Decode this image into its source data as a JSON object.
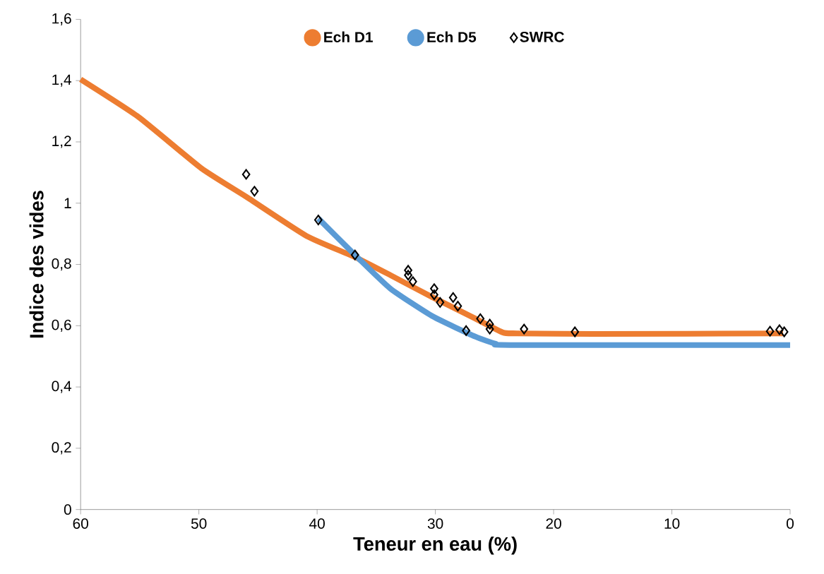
{
  "chart_data": {
    "type": "line",
    "xlabel": "Teneur en eau (%)",
    "ylabel": "Indice des vides",
    "xlim": [
      60,
      0
    ],
    "xticks": [
      60,
      50,
      40,
      30,
      20,
      10,
      0
    ],
    "ylim": [
      0,
      1.6
    ],
    "yticks": [
      0,
      {
        "value": 0.2,
        "label": "0,2"
      },
      {
        "value": 0.4,
        "label": "0,4"
      },
      {
        "value": 0.6,
        "label": "0,6"
      },
      {
        "value": 0.8,
        "label": "0,8"
      },
      1,
      {
        "value": 1.2,
        "label": "1,2"
      },
      {
        "value": 1.4,
        "label": "1,4"
      },
      {
        "value": 1.6,
        "label": "1,6"
      }
    ],
    "grid": false,
    "legend": "top",
    "series": [
      {
        "name": "Ech D1",
        "color": "#ed7d31",
        "x": [
          60,
          55.1,
          49.8,
          46.0,
          40.9,
          36.8,
          33.8,
          30.2,
          26.6,
          24.3,
          23.1,
          16.6,
          0.6
        ],
        "values": [
          1.404,
          1.281,
          1.114,
          1.021,
          0.893,
          0.824,
          0.765,
          0.692,
          0.623,
          0.578,
          0.575,
          0.573,
          0.575
        ]
      },
      {
        "name": "Ech D5",
        "color": "#5b9bd5",
        "x": [
          39.9,
          36.8,
          33.8,
          30.2,
          26.6,
          24.9,
          23.7,
          0
        ],
        "values": [
          0.95,
          0.831,
          0.721,
          0.63,
          0.564,
          0.541,
          0.537,
          0.537
        ]
      },
      {
        "name": "SWRC",
        "type": "scatter",
        "color": "#000000",
        "marker": "diamond",
        "x": [
          46.0,
          45.3,
          39.9,
          36.8,
          32.3,
          32.3,
          31.9,
          30.1,
          30.1,
          29.6,
          28.5,
          28.1,
          27.4,
          26.2,
          25.4,
          25.4,
          22.5,
          18.2,
          1.7,
          0.9,
          0.5
        ],
        "values": [
          1.094,
          1.039,
          0.945,
          0.831,
          0.781,
          0.765,
          0.744,
          0.721,
          0.701,
          0.676,
          0.692,
          0.664,
          0.584,
          0.623,
          0.605,
          0.589,
          0.589,
          0.58,
          0.582,
          0.587,
          0.58
        ]
      }
    ]
  }
}
